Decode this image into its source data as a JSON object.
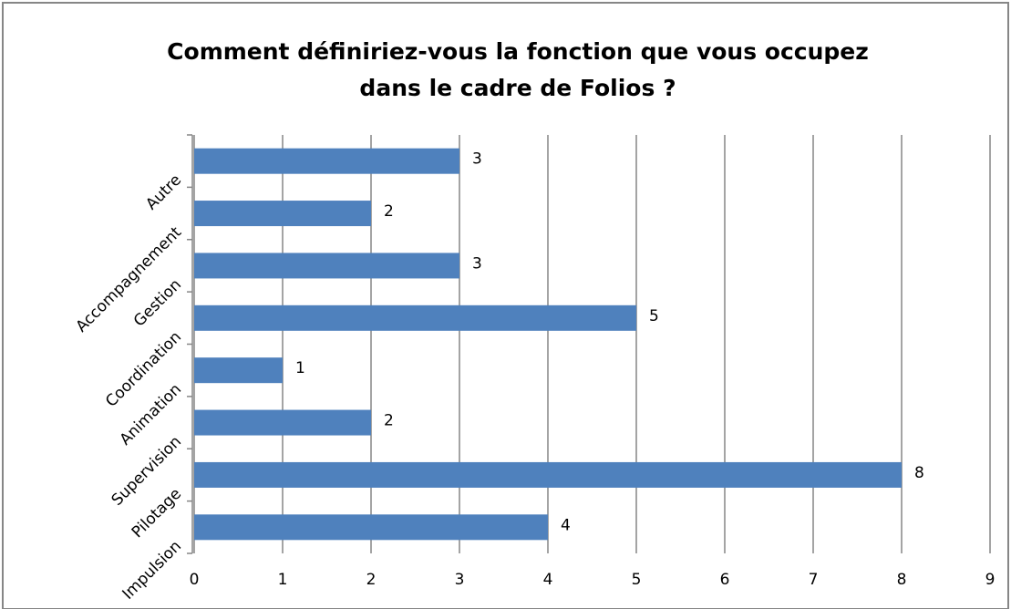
{
  "chart_data": {
    "type": "bar",
    "orientation": "horizontal",
    "title": [
      "Comment définiriez-vous la fonction que vous occupez",
      "dans le cadre de Folios ?"
    ],
    "categories": [
      "Impulsion",
      "Pilotage",
      "Supervision",
      "Animation",
      "Coordination",
      "Gestion",
      "Accompagnement",
      "Autre"
    ],
    "values": [
      4,
      8,
      2,
      1,
      5,
      3,
      2,
      3
    ],
    "color": "#4f81bd",
    "xlim": [
      0,
      9
    ],
    "xticks": [
      0,
      1,
      2,
      3,
      4,
      5,
      6,
      7,
      8,
      9
    ],
    "grid": true
  }
}
